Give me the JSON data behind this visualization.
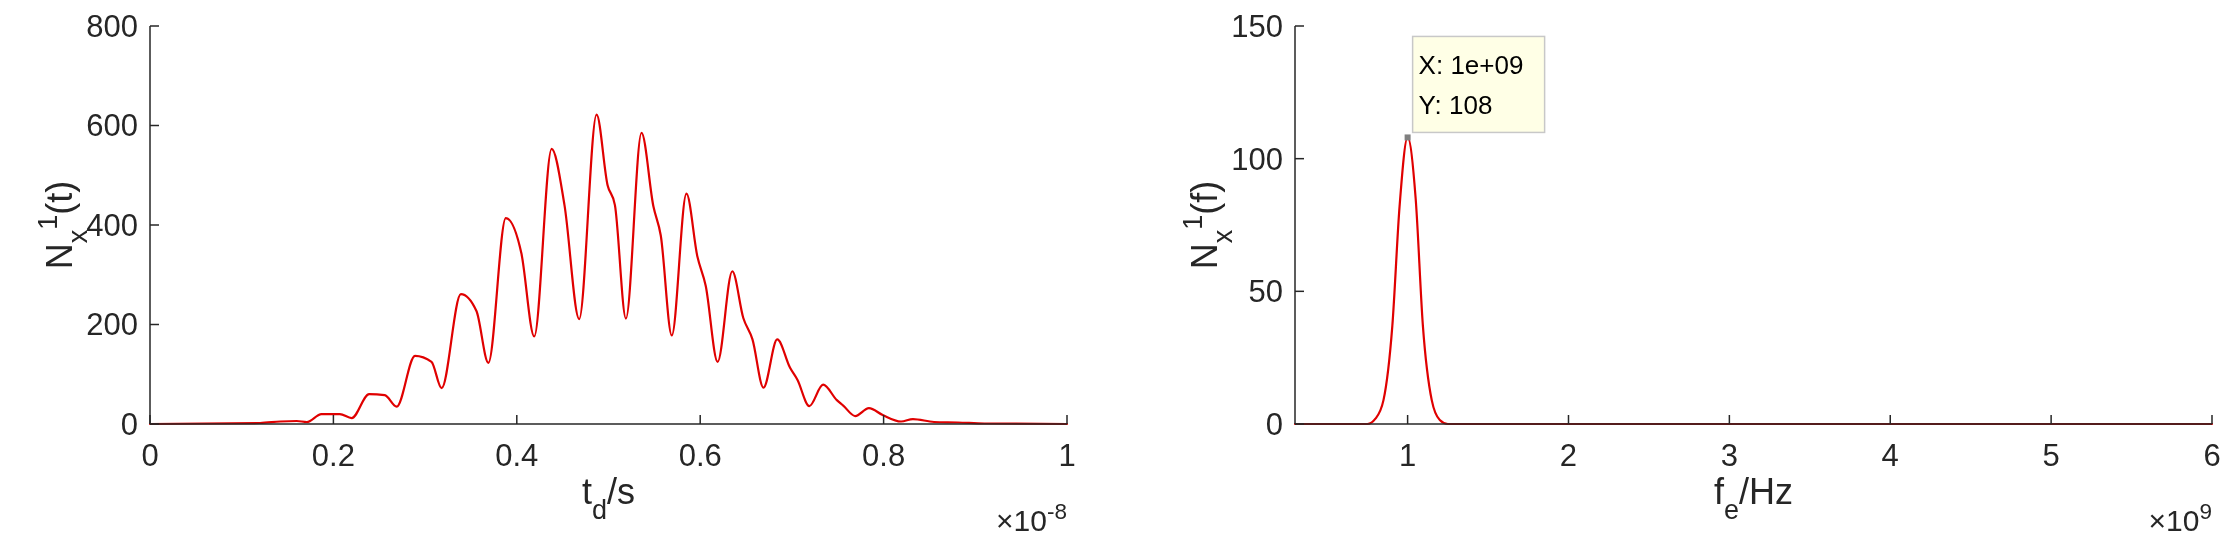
{
  "chart_data": [
    {
      "type": "line",
      "xlabel": "t$_{d}$/s",
      "ylabel": "N$_{x}$$^{1}$(t)",
      "xlim": [
        0,
        1
      ],
      "xticks": [
        0,
        0.2,
        0.4,
        0.6,
        0.8,
        1
      ],
      "ylim": [
        0,
        800
      ],
      "yticks": [
        0,
        200,
        400,
        600,
        800
      ],
      "grid": false,
      "annotations": [
        "×10$^{-8}$"
      ],
      "series": [
        {
          "color": "#e00000",
          "x": [
            0,
            0.12,
            0.142,
            0.16,
            0.171,
            0.187,
            0.207,
            0.22,
            0.239,
            0.256,
            0.269,
            0.289,
            0.307,
            0.318,
            0.339,
            0.356,
            0.369,
            0.388,
            0.405,
            0.419,
            0.438,
            0.452,
            0.468,
            0.487,
            0.499,
            0.507,
            0.519,
            0.536,
            0.549,
            0.557,
            0.569,
            0.585,
            0.597,
            0.606,
            0.619,
            0.635,
            0.647,
            0.657,
            0.669,
            0.684,
            0.698,
            0.706,
            0.719,
            0.734,
            0.749,
            0.756,
            0.769,
            0.784,
            0.799,
            0.819,
            0.832,
            0.855,
            0.881,
            0.91,
            1
          ],
          "values": [
            0,
            2,
            5,
            6,
            4,
            20,
            20,
            12,
            60,
            58,
            35,
            137,
            125,
            72,
            261,
            227,
            123,
            414,
            343,
            176,
            553,
            440,
            211,
            622,
            480,
            440,
            212,
            585,
            437,
            379,
            178,
            463,
            336,
            278,
            125,
            307,
            213,
            170,
            73,
            170,
            113,
            89,
            36,
            79,
            48,
            37,
            16,
            32,
            18,
            5,
            10,
            4,
            3,
            1,
            0
          ]
        }
      ]
    },
    {
      "type": "line",
      "xlabel": "f$_{e}$/Hz",
      "ylabel": "N$_{x}$$^{1}$(f)",
      "xlim": [
        0.3,
        6
      ],
      "xticks": [
        1,
        2,
        3,
        4,
        5,
        6
      ],
      "ylim": [
        0,
        150
      ],
      "yticks": [
        0,
        50,
        100,
        150
      ],
      "grid": false,
      "annotations": [
        {
          "text": "X: 1e+09\nY: 108",
          "x": 1,
          "y": 108
        },
        "×10$^{9}$"
      ],
      "series": [
        {
          "color": "#e00000",
          "x": [
            0.3,
            0.75,
            0.8,
            0.85,
            0.905,
            0.95,
            1,
            1.05,
            1.095,
            1.15,
            1.2,
            1.25,
            6
          ],
          "values": [
            0,
            0,
            2,
            9,
            37,
            82,
            108,
            85,
            37,
            9,
            1.5,
            0,
            0
          ]
        }
      ]
    }
  ]
}
